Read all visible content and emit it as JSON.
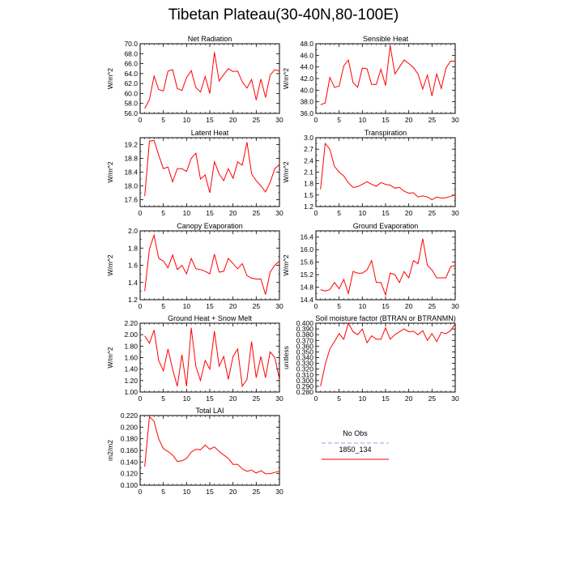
{
  "title": "Tibetan Plateau(30-40N,80-100E)",
  "legend": {
    "entries": [
      {
        "label": "No Obs",
        "color": "#9aa0e6",
        "dash": true
      },
      {
        "label": "1850_134",
        "color": "#ff0000",
        "dash": false
      }
    ]
  },
  "chart_data": [
    {
      "type": "line",
      "title": "Net Radiation",
      "ylabel": "W/m^2",
      "xlabel": "",
      "xlim": [
        0,
        30
      ],
      "xticks": [
        0,
        5,
        10,
        15,
        20,
        25,
        30
      ],
      "ylim": [
        56.0,
        70.0
      ],
      "yticks": [
        "56.0",
        "58.0",
        "60.0",
        "62.0",
        "64.0",
        "66.0",
        "68.0",
        "70.0"
      ],
      "color": "#ff0000",
      "x": [
        1,
        2,
        3,
        4,
        5,
        6,
        7,
        8,
        9,
        10,
        11,
        12,
        13,
        14,
        15,
        16,
        17,
        18,
        19,
        20,
        21,
        22,
        23,
        24,
        25,
        26,
        27,
        28,
        29,
        30
      ],
      "values": [
        57.0,
        58.8,
        63.5,
        60.8,
        60.5,
        64.5,
        64.8,
        61.0,
        60.6,
        63.2,
        64.6,
        61.2,
        60.3,
        63.4,
        60.0,
        68.3,
        62.5,
        63.8,
        65.0,
        64.4,
        64.5,
        62.3,
        61.1,
        62.8,
        58.7,
        62.9,
        59.2,
        63.7,
        64.8,
        64.5
      ]
    },
    {
      "type": "line",
      "title": "Sensible Heat",
      "ylabel": "W/m^2",
      "xlabel": "",
      "xlim": [
        0,
        30
      ],
      "xticks": [
        0,
        5,
        10,
        15,
        20,
        25,
        30
      ],
      "ylim": [
        36.0,
        48.0
      ],
      "yticks": [
        "36.0",
        "38.0",
        "40.0",
        "42.0",
        "44.0",
        "46.0",
        "48.0"
      ],
      "color": "#ff0000",
      "x": [
        1,
        2,
        3,
        4,
        5,
        6,
        7,
        8,
        9,
        10,
        11,
        12,
        13,
        14,
        15,
        16,
        17,
        18,
        19,
        20,
        21,
        22,
        23,
        24,
        25,
        26,
        27,
        28,
        29,
        30
      ],
      "values": [
        37.5,
        37.8,
        42.2,
        40.5,
        40.7,
        44.2,
        45.2,
        41.3,
        40.5,
        43.8,
        43.7,
        41.0,
        41.0,
        43.6,
        40.8,
        47.7,
        42.8,
        44.0,
        45.2,
        44.6,
        43.9,
        42.8,
        40.2,
        42.6,
        39.0,
        42.8,
        40.3,
        43.8,
        45.0,
        45.0
      ]
    },
    {
      "type": "line",
      "title": "Latent Heat",
      "ylabel": "W/m^2",
      "xlabel": "",
      "xlim": [
        0,
        30
      ],
      "xticks": [
        0,
        5,
        10,
        15,
        20,
        25,
        30
      ],
      "ylim": [
        17.4,
        19.4
      ],
      "yticks": [
        "17.6",
        "18.0",
        "18.4",
        "18.8",
        "19.2"
      ],
      "color": "#ff0000",
      "x": [
        1,
        2,
        3,
        4,
        5,
        6,
        7,
        8,
        9,
        10,
        11,
        12,
        13,
        14,
        15,
        16,
        17,
        18,
        19,
        20,
        21,
        22,
        23,
        24,
        25,
        26,
        27,
        28,
        29,
        30
      ],
      "values": [
        17.7,
        19.3,
        19.32,
        18.9,
        18.5,
        18.55,
        18.12,
        18.5,
        18.5,
        18.42,
        18.8,
        18.95,
        18.2,
        18.32,
        17.8,
        18.7,
        18.35,
        18.15,
        18.5,
        18.22,
        18.7,
        18.6,
        19.27,
        18.35,
        18.15,
        18.0,
        17.82,
        18.1,
        18.5,
        18.62
      ]
    },
    {
      "type": "line",
      "title": "Transpiration",
      "ylabel": "W/m^2",
      "xlabel": "",
      "xlim": [
        0,
        30
      ],
      "xticks": [
        0,
        5,
        10,
        15,
        20,
        25,
        30
      ],
      "ylim": [
        1.2,
        3.0
      ],
      "yticks": [
        "1.2",
        "1.5",
        "1.8",
        "2.1",
        "2.4",
        "2.7",
        "3.0"
      ],
      "color": "#ff0000",
      "x": [
        1,
        2,
        3,
        4,
        5,
        6,
        7,
        8,
        9,
        10,
        11,
        12,
        13,
        14,
        15,
        16,
        17,
        18,
        19,
        20,
        21,
        22,
        23,
        24,
        25,
        26,
        27,
        28,
        29,
        30
      ],
      "values": [
        1.65,
        2.85,
        2.7,
        2.25,
        2.1,
        2.0,
        1.82,
        1.7,
        1.72,
        1.78,
        1.85,
        1.78,
        1.73,
        1.83,
        1.78,
        1.76,
        1.68,
        1.7,
        1.6,
        1.55,
        1.56,
        1.45,
        1.48,
        1.45,
        1.38,
        1.45,
        1.42,
        1.43,
        1.47,
        1.5
      ]
    },
    {
      "type": "line",
      "title": "Canopy Evaporation",
      "ylabel": "W/m^2",
      "xlabel": "",
      "xlim": [
        0,
        30
      ],
      "xticks": [
        0,
        5,
        10,
        15,
        20,
        25,
        30
      ],
      "ylim": [
        1.2,
        2.0
      ],
      "yticks": [
        "1.2",
        "1.4",
        "1.6",
        "1.8",
        "2.0"
      ],
      "color": "#ff0000",
      "x": [
        1,
        2,
        3,
        4,
        5,
        6,
        7,
        8,
        9,
        10,
        11,
        12,
        13,
        14,
        15,
        16,
        17,
        18,
        19,
        20,
        21,
        22,
        23,
        24,
        25,
        26,
        27,
        28,
        29,
        30
      ],
      "values": [
        1.3,
        1.79,
        1.95,
        1.68,
        1.65,
        1.57,
        1.72,
        1.55,
        1.6,
        1.5,
        1.68,
        1.56,
        1.55,
        1.53,
        1.5,
        1.73,
        1.52,
        1.53,
        1.68,
        1.62,
        1.56,
        1.62,
        1.48,
        1.45,
        1.44,
        1.44,
        1.26,
        1.52,
        1.6,
        1.65
      ]
    },
    {
      "type": "line",
      "title": "Ground Evaporation",
      "ylabel": "W/m^2",
      "xlabel": "",
      "xlim": [
        0,
        30
      ],
      "xticks": [
        0,
        5,
        10,
        15,
        20,
        25,
        30
      ],
      "ylim": [
        14.4,
        16.6
      ],
      "yticks": [
        "14.4",
        "14.8",
        "15.2",
        "15.6",
        "16.0",
        "16.4"
      ],
      "color": "#ff0000",
      "x": [
        1,
        2,
        3,
        4,
        5,
        6,
        7,
        8,
        9,
        10,
        11,
        12,
        13,
        14,
        15,
        16,
        17,
        18,
        19,
        20,
        21,
        22,
        23,
        24,
        25,
        26,
        27,
        28,
        29,
        30
      ],
      "values": [
        14.72,
        14.68,
        14.72,
        14.95,
        14.75,
        15.05,
        14.6,
        15.3,
        15.25,
        15.25,
        15.35,
        15.65,
        14.95,
        14.95,
        14.55,
        15.25,
        15.2,
        14.95,
        15.3,
        15.1,
        15.65,
        15.55,
        16.35,
        15.5,
        15.35,
        15.1,
        15.1,
        15.1,
        15.45,
        15.5
      ]
    },
    {
      "type": "line",
      "title": "Ground Heat + Snow Melt",
      "ylabel": "W/m^2",
      "xlabel": "",
      "xlim": [
        0,
        30
      ],
      "xticks": [
        0,
        5,
        10,
        15,
        20,
        25,
        30
      ],
      "ylim": [
        1.0,
        2.2
      ],
      "yticks": [
        "1.00",
        "1.20",
        "1.40",
        "1.60",
        "1.80",
        "2.00",
        "2.20"
      ],
      "color": "#ff0000",
      "x": [
        1,
        2,
        3,
        4,
        5,
        6,
        7,
        8,
        9,
        10,
        11,
        12,
        13,
        14,
        15,
        16,
        17,
        18,
        19,
        20,
        21,
        22,
        23,
        24,
        25,
        26,
        27,
        28,
        29,
        30
      ],
      "values": [
        1.98,
        1.85,
        2.08,
        1.55,
        1.37,
        1.75,
        1.4,
        1.1,
        1.65,
        1.1,
        2.12,
        1.45,
        1.2,
        1.55,
        1.4,
        2.06,
        1.45,
        1.62,
        1.22,
        1.62,
        1.75,
        1.1,
        1.22,
        1.88,
        1.25,
        1.62,
        1.25,
        1.7,
        1.6,
        1.22
      ]
    },
    {
      "type": "line",
      "title": "Soil moisture factor (BTRAN or BTRANMN)",
      "ylabel": "unitless",
      "xlabel": "",
      "xlim": [
        0,
        30
      ],
      "xticks": [
        0,
        5,
        10,
        15,
        20,
        25,
        30
      ],
      "ylim": [
        0.28,
        0.4
      ],
      "yticks": [
        "0.280",
        "0.290",
        "0.300",
        "0.310",
        "0.320",
        "0.330",
        "0.340",
        "0.350",
        "0.360",
        "0.370",
        "0.380",
        "0.390",
        "0.400"
      ],
      "color": "#ff0000",
      "x": [
        1,
        2,
        3,
        4,
        5,
        6,
        7,
        8,
        9,
        10,
        11,
        12,
        13,
        14,
        15,
        16,
        17,
        18,
        19,
        20,
        21,
        22,
        23,
        24,
        25,
        26,
        27,
        28,
        29,
        30
      ],
      "values": [
        0.29,
        0.328,
        0.355,
        0.368,
        0.382,
        0.372,
        0.4,
        0.385,
        0.38,
        0.39,
        0.366,
        0.378,
        0.372,
        0.372,
        0.392,
        0.372,
        0.38,
        0.385,
        0.39,
        0.385,
        0.386,
        0.38,
        0.387,
        0.37,
        0.382,
        0.368,
        0.384,
        0.382,
        0.387,
        0.399
      ]
    },
    {
      "type": "line",
      "title": "Total LAI",
      "ylabel": "m2/m2",
      "xlabel": "",
      "xlim": [
        0,
        30
      ],
      "xticks": [
        0,
        5,
        10,
        15,
        20,
        25,
        30
      ],
      "ylim": [
        0.1,
        0.22
      ],
      "yticks": [
        "0.100",
        "0.120",
        "0.140",
        "0.160",
        "0.180",
        "0.200",
        "0.220"
      ],
      "color": "#ff0000",
      "x": [
        1,
        2,
        3,
        4,
        5,
        6,
        7,
        8,
        9,
        10,
        11,
        12,
        13,
        14,
        15,
        16,
        17,
        18,
        19,
        20,
        21,
        22,
        23,
        24,
        25,
        26,
        27,
        28,
        29,
        30
      ],
      "values": [
        0.132,
        0.218,
        0.21,
        0.18,
        0.163,
        0.158,
        0.152,
        0.141,
        0.142,
        0.146,
        0.157,
        0.162,
        0.161,
        0.169,
        0.162,
        0.166,
        0.158,
        0.152,
        0.146,
        0.136,
        0.136,
        0.128,
        0.124,
        0.126,
        0.121,
        0.125,
        0.12,
        0.12,
        0.122,
        0.124
      ]
    }
  ]
}
